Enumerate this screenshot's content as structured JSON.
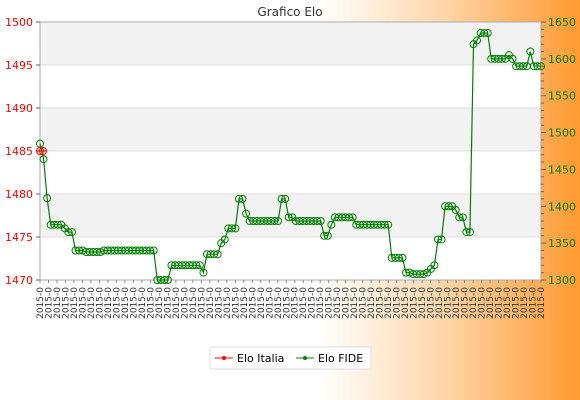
{
  "chart_data": {
    "type": "line",
    "title": "Grafico Elo",
    "y_left": {
      "ticks": [
        1470,
        1475,
        1480,
        1485,
        1490,
        1495,
        1500
      ],
      "range": [
        1470,
        1500
      ],
      "color": "#ff0000"
    },
    "y_right": {
      "ticks": [
        1300,
        1350,
        1400,
        1450,
        1500,
        1550,
        1600,
        1650
      ],
      "range": [
        1300,
        1650
      ],
      "color": "#008000"
    },
    "x_tick_label": "2015-0",
    "grid": true,
    "legend_position": "bottom",
    "series": [
      {
        "name": "Elo Italia",
        "axis": "left",
        "color": "#ff0000",
        "values": [
          1485,
          1485
        ]
      },
      {
        "name": "Elo FIDE",
        "axis": "right",
        "color": "#008000",
        "values": [
          1485,
          1464,
          1411,
          1375,
          1375,
          1375,
          1375,
          1370,
          1365,
          1365,
          1340,
          1340,
          1340,
          1338,
          1338,
          1338,
          1338,
          1338,
          1340,
          1340,
          1340,
          1340,
          1340,
          1340,
          1340,
          1340,
          1340,
          1340,
          1340,
          1340,
          1340,
          1340,
          1340,
          1300,
          1300,
          1300,
          1300,
          1320,
          1320,
          1320,
          1320,
          1320,
          1320,
          1320,
          1320,
          1320,
          1310,
          1335,
          1335,
          1335,
          1335,
          1350,
          1355,
          1370,
          1370,
          1370,
          1410,
          1410,
          1390,
          1380,
          1380,
          1380,
          1380,
          1380,
          1380,
          1380,
          1380,
          1380,
          1410,
          1410,
          1385,
          1385,
          1380,
          1380,
          1380,
          1380,
          1380,
          1380,
          1380,
          1380,
          1360,
          1360,
          1375,
          1385,
          1385,
          1385,
          1385,
          1385,
          1385,
          1375,
          1375,
          1375,
          1375,
          1375,
          1375,
          1375,
          1375,
          1375,
          1375,
          1330,
          1330,
          1330,
          1330,
          1310,
          1310,
          1308,
          1308,
          1308,
          1308,
          1310,
          1315,
          1320,
          1355,
          1355,
          1400,
          1400,
          1400,
          1395,
          1385,
          1385,
          1365,
          1365,
          1620,
          1625,
          1635,
          1635,
          1635,
          1600,
          1600,
          1600,
          1600,
          1600,
          1605,
          1600,
          1590,
          1590,
          1590,
          1590,
          1610,
          1590,
          1590,
          1590
        ]
      }
    ]
  }
}
